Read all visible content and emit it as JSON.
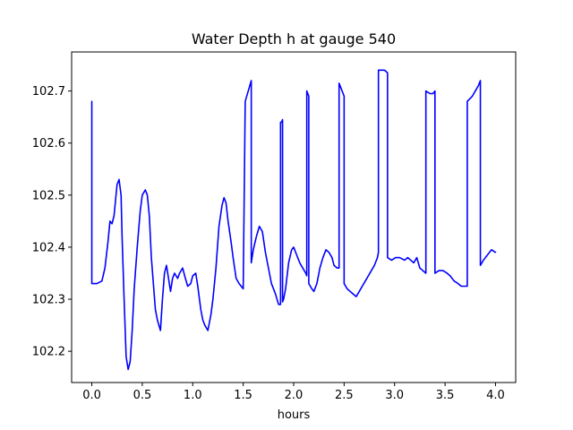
{
  "chart_data": {
    "type": "line",
    "title": "Water Depth h at gauge 540",
    "xlabel": "hours",
    "ylabel": "",
    "xlim": [
      -0.2,
      4.2
    ],
    "ylim": [
      102.14,
      102.775
    ],
    "xticks": [
      0.0,
      0.5,
      1.0,
      1.5,
      2.0,
      2.5,
      3.0,
      3.5,
      4.0
    ],
    "xtick_labels": [
      "0.0",
      "0.5",
      "1.0",
      "1.5",
      "2.0",
      "2.5",
      "3.0",
      "3.5",
      "4.0"
    ],
    "yticks": [
      102.2,
      102.3,
      102.4,
      102.5,
      102.6,
      102.7
    ],
    "ytick_labels": [
      "102.2",
      "102.3",
      "102.4",
      "102.5",
      "102.6",
      "102.7"
    ],
    "grid": false,
    "line_color": "#0000ff",
    "series": [
      {
        "name": "",
        "x": [
          0.0,
          0.0,
          0.05,
          0.1,
          0.13,
          0.16,
          0.18,
          0.2,
          0.22,
          0.25,
          0.27,
          0.29,
          0.3,
          0.32,
          0.34,
          0.36,
          0.38,
          0.4,
          0.42,
          0.45,
          0.48,
          0.5,
          0.53,
          0.55,
          0.57,
          0.59,
          0.61,
          0.63,
          0.65,
          0.68,
          0.7,
          0.72,
          0.74,
          0.76,
          0.78,
          0.8,
          0.82,
          0.85,
          0.87,
          0.9,
          0.92,
          0.95,
          0.98,
          1.0,
          1.03,
          1.05,
          1.08,
          1.1,
          1.12,
          1.15,
          1.18,
          1.2,
          1.23,
          1.26,
          1.29,
          1.31,
          1.33,
          1.35,
          1.38,
          1.4,
          1.43,
          1.46,
          1.5,
          1.52,
          1.52,
          1.58,
          1.58,
          1.6,
          1.63,
          1.66,
          1.69,
          1.72,
          1.75,
          1.78,
          1.82,
          1.85,
          1.87,
          1.87,
          1.88,
          1.89,
          1.89,
          1.9,
          1.92,
          1.95,
          1.98,
          2.0,
          2.03,
          2.06,
          2.09,
          2.12,
          2.13,
          2.13,
          2.15,
          2.15,
          2.18,
          2.2,
          2.23,
          2.26,
          2.29,
          2.32,
          2.35,
          2.38,
          2.4,
          2.43,
          2.45,
          2.45,
          2.48,
          2.5,
          2.5,
          2.53,
          2.56,
          2.59,
          2.62,
          2.65,
          2.68,
          2.71,
          2.74,
          2.77,
          2.8,
          2.83,
          2.84,
          2.84,
          2.9,
          2.93,
          2.93,
          2.97,
          3.01,
          3.05,
          3.1,
          3.13,
          3.16,
          3.19,
          3.22,
          3.25,
          3.28,
          3.31,
          3.31,
          3.35,
          3.38,
          3.4,
          3.4,
          3.44,
          3.48,
          3.52,
          3.55,
          3.59,
          3.63,
          3.66,
          3.7,
          3.72,
          3.72,
          3.77,
          3.8,
          3.83,
          3.85,
          3.85,
          3.88,
          3.92,
          3.96,
          4.0
        ],
        "values": [
          102.68,
          102.33,
          102.33,
          102.335,
          102.36,
          102.41,
          102.45,
          102.445,
          102.46,
          102.52,
          102.53,
          102.5,
          102.42,
          102.3,
          102.19,
          102.165,
          102.18,
          102.24,
          102.32,
          102.4,
          102.47,
          102.5,
          102.51,
          102.5,
          102.46,
          102.38,
          102.33,
          102.28,
          102.26,
          102.24,
          102.3,
          102.35,
          102.365,
          102.34,
          102.315,
          102.34,
          102.35,
          102.34,
          102.35,
          102.36,
          102.345,
          102.325,
          102.33,
          102.345,
          102.35,
          102.325,
          102.28,
          102.26,
          102.25,
          102.24,
          102.27,
          102.3,
          102.36,
          102.44,
          102.48,
          102.495,
          102.485,
          102.45,
          102.41,
          102.38,
          102.34,
          102.33,
          102.32,
          102.68,
          102.68,
          102.72,
          102.37,
          102.395,
          102.42,
          102.44,
          102.43,
          102.39,
          102.36,
          102.33,
          102.31,
          102.29,
          102.29,
          102.64,
          102.64,
          102.645,
          102.295,
          102.3,
          102.32,
          102.37,
          102.395,
          102.4,
          102.385,
          102.37,
          102.36,
          102.35,
          102.345,
          102.7,
          102.69,
          102.33,
          102.32,
          102.315,
          102.33,
          102.36,
          102.38,
          102.395,
          102.39,
          102.38,
          102.365,
          102.36,
          102.36,
          102.715,
          102.7,
          102.69,
          102.33,
          102.32,
          102.315,
          102.31,
          102.305,
          102.315,
          102.325,
          102.335,
          102.345,
          102.355,
          102.365,
          102.38,
          102.39,
          102.74,
          102.74,
          102.735,
          102.38,
          102.375,
          102.38,
          102.38,
          102.375,
          102.38,
          102.375,
          102.37,
          102.38,
          102.36,
          102.355,
          102.35,
          102.7,
          102.695,
          102.695,
          102.7,
          102.35,
          102.355,
          102.355,
          102.35,
          102.345,
          102.335,
          102.33,
          102.325,
          102.325,
          102.325,
          102.68,
          102.69,
          102.7,
          102.71,
          102.72,
          102.365,
          102.375,
          102.385,
          102.395,
          102.39
        ]
      }
    ]
  }
}
